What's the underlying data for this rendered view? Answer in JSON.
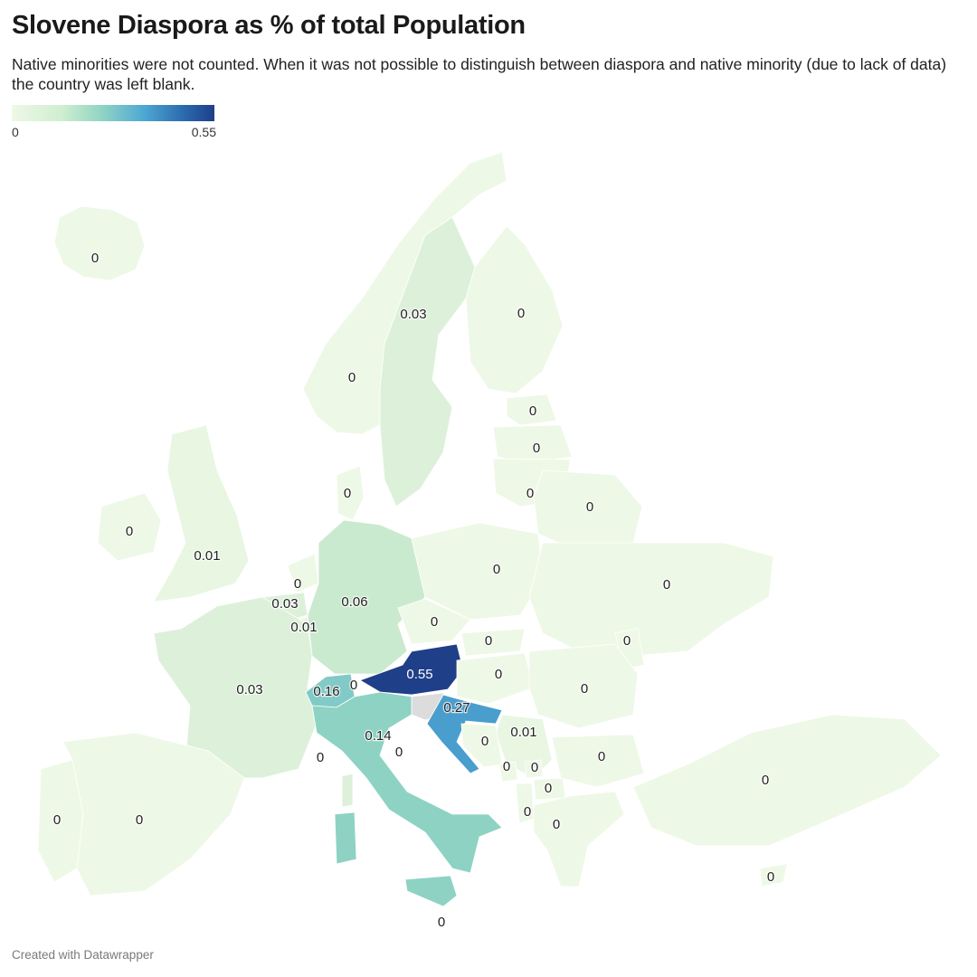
{
  "header": {
    "title": "Slovene Diaspora as % of total Population",
    "subtitle": "Native minorities were not counted. When it was not possible to distinguish between diaspora and native minority (due to lack of data) the country was left blank."
  },
  "legend": {
    "min_label": "0",
    "max_label": "0.55"
  },
  "colors": {
    "scale_low": "#eef8e6",
    "scale_mid": "#8fd3c4",
    "scale_high": "#1f3f88",
    "no_data": "#dcdcdc"
  },
  "map_data": {
    "unit": "% of total population",
    "regions": [
      {
        "name": "Iceland",
        "value": 0,
        "label": "0"
      },
      {
        "name": "Norway",
        "value": 0,
        "label": "0"
      },
      {
        "name": "Sweden",
        "value": 0.03,
        "label": "0.03"
      },
      {
        "name": "Finland",
        "value": 0,
        "label": "0"
      },
      {
        "name": "Estonia",
        "value": 0,
        "label": "0"
      },
      {
        "name": "Latvia",
        "value": 0,
        "label": "0"
      },
      {
        "name": "Lithuania",
        "value": 0,
        "label": "0"
      },
      {
        "name": "Belarus",
        "value": 0,
        "label": "0"
      },
      {
        "name": "Ireland",
        "value": 0,
        "label": "0"
      },
      {
        "name": "United Kingdom",
        "value": 0.01,
        "label": "0.01"
      },
      {
        "name": "Denmark",
        "value": 0,
        "label": "0"
      },
      {
        "name": "Netherlands",
        "value": 0,
        "label": "0"
      },
      {
        "name": "Belgium",
        "value": 0.03,
        "label": "0.03"
      },
      {
        "name": "Luxembourg",
        "value": 0.01,
        "label": "0.01"
      },
      {
        "name": "Germany",
        "value": 0.06,
        "label": "0.06"
      },
      {
        "name": "Poland",
        "value": 0,
        "label": "0"
      },
      {
        "name": "Ukraine",
        "value": 0,
        "label": "0"
      },
      {
        "name": "Czechia",
        "value": 0,
        "label": "0"
      },
      {
        "name": "Slovakia",
        "value": 0,
        "label": "0"
      },
      {
        "name": "Moldova",
        "value": 0,
        "label": "0"
      },
      {
        "name": "France",
        "value": 0.03,
        "label": "0.03"
      },
      {
        "name": "Switzerland",
        "value": 0.16,
        "label": "0.16"
      },
      {
        "name": "Liechtenstein",
        "value": 0,
        "label": "0"
      },
      {
        "name": "Austria",
        "value": 0.55,
        "label": "0.55"
      },
      {
        "name": "Hungary",
        "value": 0,
        "label": "0"
      },
      {
        "name": "Romania",
        "value": 0,
        "label": "0"
      },
      {
        "name": "Croatia",
        "value": 0.27,
        "label": "0.27"
      },
      {
        "name": "Serbia",
        "value": 0.01,
        "label": "0.01"
      },
      {
        "name": "Italy",
        "value": 0.14,
        "label": "0.14"
      },
      {
        "name": "San Marino",
        "value": 0,
        "label": "0"
      },
      {
        "name": "Monaco",
        "value": 0,
        "label": "0"
      },
      {
        "name": "Bosnia and Herzegovina",
        "value": 0,
        "label": "0"
      },
      {
        "name": "Bulgaria",
        "value": 0,
        "label": "0"
      },
      {
        "name": "Montenegro",
        "value": 0,
        "label": "0"
      },
      {
        "name": "Kosovo",
        "value": 0,
        "label": "0"
      },
      {
        "name": "North Macedonia",
        "value": 0,
        "label": "0"
      },
      {
        "name": "Albania",
        "value": 0,
        "label": "0"
      },
      {
        "name": "Greece",
        "value": 0,
        "label": "0"
      },
      {
        "name": "Turkey",
        "value": 0,
        "label": "0"
      },
      {
        "name": "Cyprus",
        "value": 0,
        "label": "0"
      },
      {
        "name": "Portugal",
        "value": 0,
        "label": "0"
      },
      {
        "name": "Spain",
        "value": 0,
        "label": "0"
      },
      {
        "name": "Malta",
        "value": 0,
        "label": "0"
      },
      {
        "name": "Slovenia",
        "value": null,
        "label": ""
      }
    ]
  },
  "footer": {
    "credit": "Created with Datawrapper"
  }
}
